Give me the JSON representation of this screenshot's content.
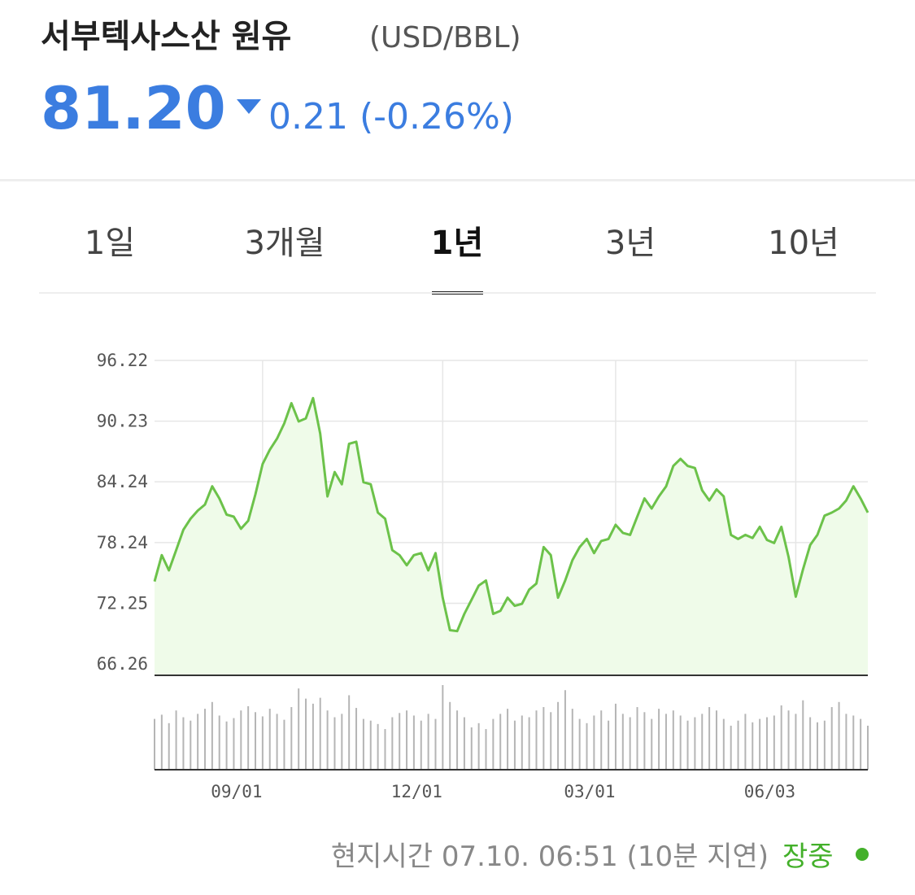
{
  "header": {
    "title": "서부텍사스산 원유",
    "unit": "(USD/BBL)",
    "price": "81.20",
    "change": "0.21",
    "change_pct": "(-0.26%)"
  },
  "tabs": {
    "items": [
      "1일",
      "3개월",
      "1년",
      "3년",
      "10년"
    ],
    "selected": 2
  },
  "chart_data": [
    {
      "type": "line",
      "color": "#6cc24a",
      "fill": "#effbe9",
      "grid": true,
      "ylim": [
        65.14,
        96.22
      ],
      "yticks": [
        66.26,
        72.25,
        78.24,
        84.24,
        90.23,
        96.22
      ],
      "values": [
        74.4,
        77.0,
        75.5,
        77.5,
        79.5,
        80.6,
        81.4,
        82.0,
        83.8,
        82.6,
        81.0,
        80.8,
        79.6,
        80.4,
        83.0,
        86.0,
        87.4,
        88.5,
        90.0,
        92.0,
        90.2,
        90.5,
        92.5,
        89.0,
        82.8,
        85.2,
        84.0,
        88.0,
        88.2,
        84.2,
        84.0,
        81.2,
        80.6,
        77.5,
        77.0,
        76.0,
        77.0,
        77.2,
        75.5,
        77.2,
        72.8,
        69.6,
        69.5,
        71.2,
        72.6,
        74.0,
        74.5,
        71.2,
        71.5,
        72.8,
        72.0,
        72.2,
        73.6,
        74.2,
        77.8,
        77.0,
        72.8,
        74.5,
        76.5,
        77.8,
        78.6,
        77.2,
        78.4,
        78.6,
        80.0,
        79.2,
        79.0,
        80.8,
        82.6,
        81.6,
        82.8,
        83.8,
        85.8,
        86.5,
        85.8,
        85.6,
        83.4,
        82.4,
        83.5,
        82.8,
        79.0,
        78.6,
        79.0,
        78.7,
        79.8,
        78.5,
        78.2,
        79.8,
        76.8,
        72.9,
        75.6,
        78.0,
        79.0,
        80.9,
        81.2,
        81.6,
        82.4,
        83.8,
        82.6,
        81.2
      ]
    },
    {
      "type": "bar",
      "color": "#b5b5b5",
      "categories": [
        null,
        null,
        null,
        null,
        null,
        null,
        null,
        null,
        null,
        null,
        null,
        null,
        null,
        null,
        null,
        "09/01",
        null,
        null,
        null,
        null,
        null,
        null,
        null,
        null,
        null,
        null,
        null,
        null,
        null,
        null,
        null,
        null,
        null,
        null,
        null,
        null,
        null,
        null,
        null,
        null,
        "12/01",
        null,
        null,
        null,
        null,
        null,
        null,
        null,
        null,
        null,
        null,
        null,
        null,
        null,
        null,
        null,
        null,
        null,
        null,
        null,
        null,
        null,
        null,
        null,
        "03/01",
        null,
        null,
        null,
        null,
        null,
        null,
        null,
        null,
        null,
        null,
        null,
        null,
        null,
        null,
        null,
        null,
        null,
        null,
        null,
        null,
        null,
        null,
        null,
        null,
        "06/03",
        null,
        null,
        null,
        null,
        null,
        null,
        null,
        null,
        null,
        null
      ],
      "values": [
        60,
        65,
        55,
        70,
        62,
        58,
        66,
        72,
        80,
        64,
        57,
        61,
        70,
        75,
        68,
        63,
        72,
        66,
        59,
        74,
        96,
        84,
        78,
        85,
        70,
        62,
        66,
        88,
        73,
        60,
        58,
        54,
        48,
        62,
        67,
        70,
        64,
        58,
        66,
        60,
        100,
        80,
        70,
        62,
        50,
        55,
        48,
        60,
        66,
        72,
        58,
        64,
        62,
        70,
        74,
        68,
        80,
        94,
        72,
        60,
        55,
        64,
        70,
        58,
        78,
        66,
        62,
        74,
        68,
        60,
        72,
        66,
        70,
        64,
        58,
        62,
        66,
        74,
        70,
        60,
        52,
        58,
        66,
        56,
        60,
        62,
        64,
        76,
        70,
        66,
        82,
        62,
        56,
        58,
        74,
        80,
        66,
        64,
        60,
        52
      ]
    }
  ],
  "footer": {
    "time": "현지시간 07.10. 06:51 (10분 지연)",
    "status": "장중"
  }
}
